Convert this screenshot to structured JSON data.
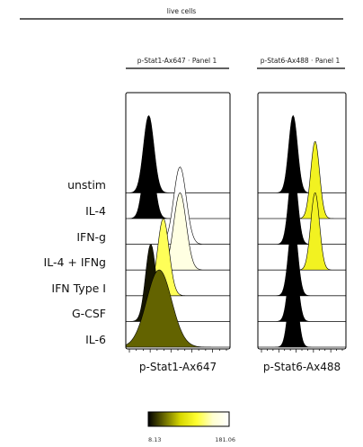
{
  "header": {
    "population": "live cells"
  },
  "chart_data": [
    {
      "type": "area",
      "panel_title": "p-Stat1-Ax647 · Panel 1",
      "xlabel": "p-Stat1-Ax647",
      "categories": [
        "unstim",
        "IL-4",
        "IFN-g",
        "IL-4 + IFNg",
        "IFN Type I",
        "G-CSF",
        "IL-6"
      ],
      "series": [
        {
          "name": "unstim",
          "peak_position": 0.22,
          "width": 0.05,
          "median_intensity": 8.13
        },
        {
          "name": "IL-4",
          "peak_position": 0.22,
          "width": 0.05,
          "median_intensity": 8.13
        },
        {
          "name": "IFN-g",
          "peak_position": 0.52,
          "width": 0.06,
          "median_intensity": 181.06
        },
        {
          "name": "IL-4 + IFNg",
          "peak_position": 0.52,
          "width": 0.06,
          "median_intensity": 160
        },
        {
          "name": "IFN Type I",
          "peak_position": 0.36,
          "width": 0.055,
          "median_intensity": 120
        },
        {
          "name": "G-CSF",
          "peak_position": 0.24,
          "width": 0.05,
          "median_intensity": 15
        },
        {
          "name": "IL-6",
          "peak_position": 0.32,
          "width": 0.12,
          "median_intensity": 40
        }
      ]
    },
    {
      "type": "area",
      "panel_title": "p-Stat6-Ax488 · Panel 1",
      "xlabel": "p-Stat6-Ax488",
      "categories": [
        "unstim",
        "IL-4",
        "IFN-g",
        "IL-4 + IFNg",
        "IFN Type I",
        "G-CSF",
        "IL-6"
      ],
      "series": [
        {
          "name": "unstim",
          "peak_position": 0.4,
          "width": 0.05,
          "median_intensity": 8.13
        },
        {
          "name": "IL-4",
          "peak_position": 0.65,
          "width": 0.05,
          "median_intensity": 100
        },
        {
          "name": "IFN-g",
          "peak_position": 0.4,
          "width": 0.05,
          "median_intensity": 8.13
        },
        {
          "name": "IL-4 + IFNg",
          "peak_position": 0.65,
          "width": 0.05,
          "median_intensity": 100
        },
        {
          "name": "IFN Type I",
          "peak_position": 0.4,
          "width": 0.05,
          "median_intensity": 8.13
        },
        {
          "name": "G-CSF",
          "peak_position": 0.4,
          "width": 0.05,
          "median_intensity": 8.13
        },
        {
          "name": "IL-6",
          "peak_position": 0.4,
          "width": 0.05,
          "median_intensity": 8.13
        }
      ]
    }
  ],
  "colorbar": {
    "min_label": "8.13",
    "max_label": "181.06",
    "min": 8.13,
    "max": 181.06,
    "colors": [
      "#000000",
      "#6b6b00",
      "#d8d800",
      "#ffff33",
      "#ffffd0",
      "#ffffff"
    ]
  },
  "colors": {
    "frame": "#000000",
    "row_line": "#8a8a8a"
  }
}
